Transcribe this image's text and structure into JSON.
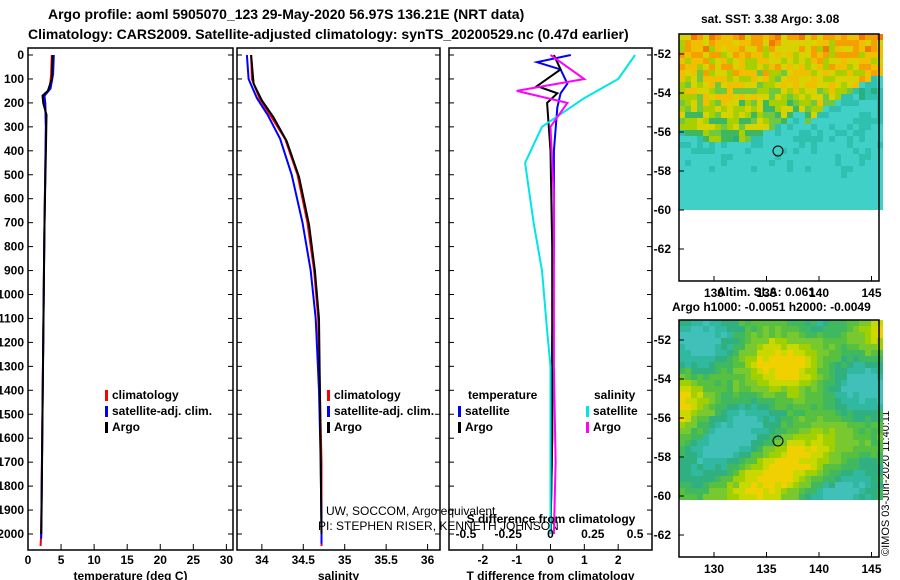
{
  "header": {
    "line1": "Argo profile: aoml 5905070_123 29-May-2020 56.97S 136.21E (NRT data)",
    "line2": "Climatology: CARS2009. Satellite-adjusted climatology: synTS_20200529.nc (0.47d earlier)"
  },
  "colors": {
    "climatology": "#ff0000",
    "satellite": "#0000ff",
    "argo": "#000000",
    "sal_satellite": "#00e5e5",
    "sal_argo": "#ff00ff"
  },
  "chart_data": [
    {
      "type": "line",
      "panel": "temperature",
      "xlabel": "temperature (deg C)",
      "xlim": [
        0,
        31
      ],
      "ylim": [
        2050,
        0
      ],
      "xticks": [
        "0",
        "5",
        "10",
        "15",
        "20",
        "25",
        "30"
      ],
      "yticks": [
        "0",
        "100",
        "200",
        "300",
        "400",
        "500",
        "600",
        "700",
        "800",
        "900",
        "1000",
        "1100",
        "1200",
        "1300",
        "1400",
        "1500",
        "1600",
        "1700",
        "1800",
        "1900",
        "2000"
      ],
      "legend": [
        "climatology",
        "satellite-adj. clim.",
        "Argo"
      ],
      "series": [
        {
          "name": "climatology",
          "color": "#ff0000",
          "points": [
            [
              3.6,
              0
            ],
            [
              3.5,
              80
            ],
            [
              3.3,
              140
            ],
            [
              2.4,
              170
            ],
            [
              2.6,
              200
            ],
            [
              2.7,
              300
            ],
            [
              2.6,
              500
            ],
            [
              2.45,
              800
            ],
            [
              2.3,
              1200
            ],
            [
              2.15,
              1600
            ],
            [
              2.0,
              2000
            ],
            [
              1.9,
              2050
            ]
          ]
        },
        {
          "name": "satellite-adj. clim.",
          "color": "#0000ff",
          "points": [
            [
              3.9,
              0
            ],
            [
              3.8,
              80
            ],
            [
              3.4,
              140
            ],
            [
              2.5,
              170
            ],
            [
              2.6,
              200
            ],
            [
              2.7,
              300
            ],
            [
              2.6,
              500
            ],
            [
              2.45,
              800
            ],
            [
              2.3,
              1200
            ],
            [
              2.15,
              1600
            ],
            [
              2.0,
              2000
            ],
            [
              2.0,
              2020
            ]
          ]
        },
        {
          "name": "Argo",
          "color": "#000000",
          "points": [
            [
              3.7,
              0
            ],
            [
              3.6,
              100
            ],
            [
              3.0,
              150
            ],
            [
              2.2,
              170
            ],
            [
              2.3,
              200
            ],
            [
              2.8,
              250
            ],
            [
              2.7,
              400
            ],
            [
              2.5,
              700
            ],
            [
              2.35,
              1100
            ],
            [
              2.2,
              1500
            ],
            [
              2.05,
              1900
            ],
            [
              2.0,
              2000
            ]
          ]
        }
      ]
    },
    {
      "type": "line",
      "panel": "salinity",
      "xlabel": "salinity",
      "xlim": [
        33.7,
        36.15
      ],
      "ylim": [
        2050,
        0
      ],
      "xticks": [
        "34",
        "34.5",
        "35",
        "35.5",
        "36"
      ],
      "legend": [
        "climatology",
        "satellite-adj. clim.",
        "Argo"
      ],
      "series": [
        {
          "name": "climatology",
          "color": "#ff0000",
          "points": [
            [
              33.87,
              0
            ],
            [
              33.88,
              100
            ],
            [
              33.97,
              180
            ],
            [
              34.1,
              250
            ],
            [
              34.28,
              350
            ],
            [
              34.43,
              500
            ],
            [
              34.55,
              700
            ],
            [
              34.63,
              900
            ],
            [
              34.68,
              1100
            ],
            [
              34.7,
              1400
            ],
            [
              34.72,
              1700
            ],
            [
              34.72,
              2000
            ],
            [
              34.72,
              2050
            ]
          ]
        },
        {
          "name": "satellite-adj. clim.",
          "color": "#0000ff",
          "points": [
            [
              33.82,
              0
            ],
            [
              33.84,
              100
            ],
            [
              33.94,
              180
            ],
            [
              34.07,
              250
            ],
            [
              34.22,
              350
            ],
            [
              34.36,
              500
            ],
            [
              34.49,
              700
            ],
            [
              34.59,
              900
            ],
            [
              34.65,
              1100
            ],
            [
              34.69,
              1400
            ],
            [
              34.71,
              1700
            ],
            [
              34.72,
              2000
            ],
            [
              34.72,
              2040
            ]
          ]
        },
        {
          "name": "Argo",
          "color": "#000000",
          "points": [
            [
              33.87,
              0
            ],
            [
              33.9,
              120
            ],
            [
              34.0,
              190
            ],
            [
              34.14,
              260
            ],
            [
              34.3,
              360
            ],
            [
              34.45,
              510
            ],
            [
              34.57,
              710
            ],
            [
              34.64,
              900
            ],
            [
              34.69,
              1100
            ],
            [
              34.7,
              1400
            ],
            [
              34.71,
              1700
            ],
            [
              34.72,
              2000
            ]
          ]
        }
      ],
      "annotation": [
        "UW, SOCCOM, Argo equivalent",
        "PI: STEPHEN RISER, KENNETH JOHNSON"
      ]
    },
    {
      "type": "line",
      "panel": "difference",
      "xlabel": "T difference from climatology",
      "xlim": [
        -3,
        3
      ],
      "ylim": [
        2050,
        0
      ],
      "xticks": [
        "-2",
        "-1",
        "0",
        "1",
        "2"
      ],
      "secondary_axis_label": "S difference from climatology",
      "secondary_xticks": [
        "-0.5",
        "-0.25",
        "0",
        "0.25",
        "0.5"
      ],
      "legend_titles": [
        "temperature",
        "salinity"
      ],
      "legend": [
        "satellite",
        "Argo",
        "satellite",
        "Argo"
      ],
      "series": [
        {
          "name": "T satellite",
          "color": "#0000ff",
          "points": [
            [
              0.6,
              0
            ],
            [
              -0.4,
              30
            ],
            [
              0.3,
              60
            ],
            [
              0.5,
              120
            ],
            [
              0.3,
              160
            ],
            [
              0.2,
              220
            ],
            [
              0.1,
              400
            ],
            [
              0.1,
              800
            ],
            [
              0.05,
              1200
            ],
            [
              0.05,
              1600
            ],
            [
              0.0,
              2000
            ]
          ]
        },
        {
          "name": "T Argo",
          "color": "#000000",
          "points": [
            [
              0.1,
              0
            ],
            [
              0.3,
              60
            ],
            [
              -0.4,
              130
            ],
            [
              0.2,
              160
            ],
            [
              -0.1,
              200
            ],
            [
              0.0,
              400
            ],
            [
              0.05,
              800
            ],
            [
              0.05,
              1200
            ],
            [
              0.05,
              1600
            ],
            [
              0.0,
              2000
            ]
          ]
        },
        {
          "name": "S satellite",
          "color": "#00e5e5",
          "points": [
            [
              0.5,
              0
            ],
            [
              0.4,
              100
            ],
            [
              0.2,
              180
            ],
            [
              -0.05,
              300
            ],
            [
              -0.15,
              450
            ],
            [
              -0.1,
              700
            ],
            [
              -0.05,
              900
            ],
            [
              -0.02,
              1150
            ],
            [
              0.0,
              1300
            ],
            [
              0.0,
              2000
            ]
          ]
        },
        {
          "name": "S Argo",
          "color": "#ff00ff",
          "points": [
            [
              0.0,
              0
            ],
            [
              0.2,
              100
            ],
            [
              -0.2,
              150
            ],
            [
              0.1,
              200
            ],
            [
              0.0,
              300
            ],
            [
              0.02,
              600
            ],
            [
              0.02,
              900
            ],
            [
              0.02,
              1300
            ],
            [
              0.03,
              1700
            ],
            [
              0.02,
              2000
            ]
          ]
        }
      ]
    },
    {
      "type": "heatmap",
      "panel": "sst_map",
      "title": "sat. SST: 3.38 Argo: 3.08",
      "xticks": [
        "130",
        "135",
        "140",
        "145"
      ],
      "yticks": [
        "-52",
        "-54",
        "-56",
        "-58",
        "-60",
        "-62"
      ]
    },
    {
      "type": "heatmap",
      "panel": "sla_map",
      "title": "Altim. SLA: 0.061",
      "subtitle": "Argo h1000: -0.0051 h2000: -0.0049",
      "xticks": [
        "130",
        "135",
        "140",
        "145"
      ],
      "yticks": [
        "-52",
        "-54",
        "-56",
        "-58",
        "-60",
        "-62"
      ]
    }
  ],
  "footer": {
    "credit": "©IMOS 03-Jun-2020 11:40:11"
  }
}
